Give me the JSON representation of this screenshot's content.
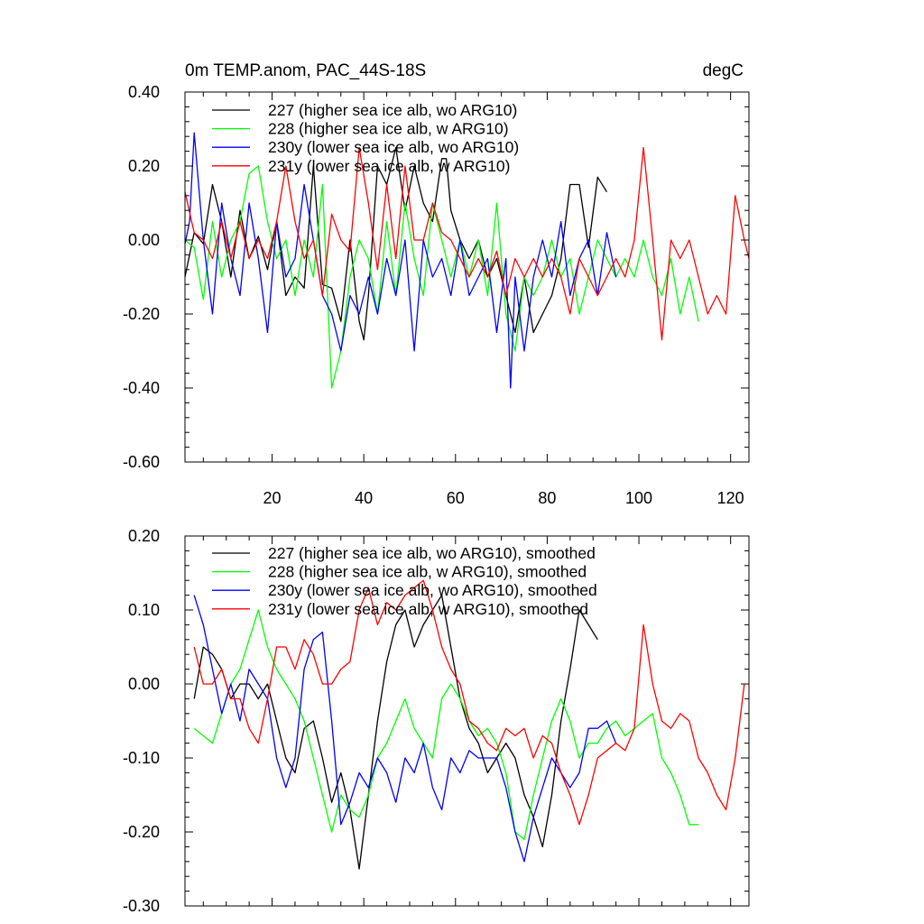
{
  "chart_data": [
    {
      "type": "line",
      "title_left": "0m TEMP.anom, PAC_44S-18S",
      "title_right": "degC",
      "xlabel": "",
      "ylabel": "",
      "xlim": [
        1,
        124
      ],
      "ylim": [
        -0.6,
        0.4
      ],
      "yticks": [
        -0.6,
        -0.4,
        -0.2,
        0.0,
        0.2,
        0.4
      ],
      "ytick_labels": [
        "-0.60",
        "-0.40",
        "-0.20",
        "0.00",
        "0.20",
        "0.40"
      ],
      "xticks": [
        20,
        40,
        60,
        80,
        100,
        120
      ],
      "xtick_labels": [
        "20",
        "40",
        "60",
        "80",
        "100",
        "120"
      ],
      "legend_position": "top-left",
      "series": [
        {
          "name": "227 (higher sea ice alb, wo ARG10)",
          "color": "#000000",
          "x": [
            1,
            3,
            5,
            7,
            9,
            11,
            13,
            15,
            17,
            19,
            21,
            23,
            25,
            27,
            29,
            31,
            33,
            35,
            37,
            39,
            40,
            41,
            43,
            45,
            47,
            49,
            51,
            53,
            55,
            57,
            58,
            59,
            61,
            63,
            65,
            67,
            69,
            71,
            73,
            75,
            77,
            79,
            81,
            83,
            85,
            87,
            89,
            91,
            93
          ],
          "y": [
            -0.1,
            0.02,
            -0.01,
            0.15,
            0.05,
            -0.1,
            0.08,
            -0.05,
            0.01,
            -0.08,
            0.05,
            -0.15,
            -0.1,
            -0.13,
            0.2,
            -0.12,
            -0.13,
            -0.22,
            0.0,
            -0.22,
            -0.27,
            -0.15,
            0.2,
            0.15,
            0.25,
            0.08,
            0.2,
            0.1,
            0.05,
            0.22,
            0.22,
            0.08,
            0.0,
            -0.05,
            0.0,
            -0.1,
            -0.05,
            -0.15,
            -0.25,
            -0.1,
            -0.25,
            -0.2,
            -0.15,
            -0.05,
            0.15,
            0.15,
            -0.02,
            0.17,
            0.13
          ]
        },
        {
          "name": "228 (higher sea ice alb, w ARG10)",
          "color": "#00ff00",
          "x": [
            1,
            3,
            5,
            7,
            9,
            11,
            13,
            15,
            17,
            19,
            21,
            23,
            25,
            27,
            29,
            31,
            33,
            35,
            37,
            39,
            41,
            43,
            45,
            47,
            49,
            51,
            53,
            55,
            57,
            59,
            61,
            63,
            65,
            67,
            69,
            71,
            73,
            75,
            77,
            79,
            81,
            83,
            85,
            87,
            89,
            91,
            93,
            95,
            97,
            99,
            101,
            103,
            105,
            107,
            109,
            111,
            113
          ],
          "y": [
            0.0,
            -0.02,
            -0.16,
            0.05,
            -0.1,
            0.0,
            0.05,
            0.18,
            0.2,
            0.05,
            -0.05,
            0.0,
            -0.15,
            0.0,
            -0.1,
            0.15,
            -0.4,
            -0.3,
            -0.1,
            0.0,
            -0.05,
            -0.2,
            0.05,
            -0.15,
            0.1,
            -0.05,
            -0.15,
            0.1,
            0.0,
            -0.1,
            0.0,
            -0.1,
            0.0,
            -0.15,
            0.1,
            -0.2,
            -0.3,
            -0.1,
            -0.15,
            -0.1,
            0.0,
            -0.1,
            -0.05,
            -0.2,
            -0.1,
            0.0,
            -0.05,
            -0.1,
            -0.05,
            -0.1,
            0.0,
            -0.1,
            -0.15,
            -0.05,
            -0.2,
            -0.1,
            -0.22
          ]
        },
        {
          "name": "230y (lower sea ice alb, wo ARG10)",
          "color": "#0000ff",
          "x": [
            1,
            2,
            3,
            5,
            7,
            9,
            11,
            13,
            15,
            17,
            19,
            21,
            23,
            25,
            27,
            29,
            31,
            33,
            35,
            37,
            39,
            41,
            43,
            45,
            47,
            49,
            51,
            53,
            55,
            57,
            59,
            61,
            63,
            65,
            67,
            69,
            71,
            72,
            73,
            75,
            77,
            79,
            81,
            83,
            85,
            87,
            89,
            91,
            93,
            95
          ],
          "y": [
            -0.01,
            0.05,
            0.29,
            0.0,
            -0.2,
            0.1,
            -0.05,
            -0.15,
            0.1,
            -0.05,
            -0.25,
            0.05,
            -0.1,
            -0.05,
            0.15,
            0.0,
            -0.15,
            -0.2,
            -0.3,
            -0.15,
            -0.2,
            -0.1,
            -0.2,
            -0.05,
            -0.15,
            0.0,
            -0.3,
            0.0,
            -0.1,
            -0.05,
            -0.15,
            0.0,
            -0.15,
            -0.1,
            -0.05,
            -0.25,
            -0.05,
            -0.4,
            -0.1,
            -0.3,
            -0.1,
            0.0,
            -0.1,
            0.05,
            -0.15,
            -0.05,
            0.0,
            -0.15,
            0.02,
            -0.1
          ]
        },
        {
          "name": "231y (lower sea ice alb, w ARG10)",
          "color": "#ff0000",
          "x": [
            1,
            3,
            5,
            7,
            9,
            11,
            13,
            15,
            17,
            19,
            21,
            23,
            25,
            27,
            29,
            31,
            33,
            35,
            37,
            39,
            41,
            43,
            45,
            47,
            49,
            51,
            53,
            55,
            57,
            59,
            61,
            63,
            65,
            67,
            69,
            71,
            73,
            75,
            77,
            79,
            81,
            83,
            85,
            87,
            89,
            91,
            93,
            95,
            97,
            99,
            101,
            103,
            105,
            107,
            109,
            111,
            113,
            115,
            117,
            119,
            121,
            123,
            124
          ],
          "y": [
            0.13,
            0.02,
            0.0,
            -0.05,
            0.05,
            -0.05,
            0.05,
            -0.05,
            0.0,
            -0.05,
            0.05,
            0.2,
            0.05,
            -0.05,
            0.0,
            -0.15,
            0.07,
            0.0,
            -0.03,
            0.25,
            0.1,
            -0.08,
            0.15,
            -0.05,
            0.2,
            0.0,
            0.0,
            0.1,
            0.02,
            0.0,
            -0.05,
            -0.1,
            -0.05,
            -0.1,
            -0.03,
            -0.15,
            -0.05,
            -0.1,
            -0.05,
            -0.1,
            -0.05,
            -0.1,
            -0.2,
            -0.05,
            -0.1,
            -0.15,
            -0.1,
            -0.05,
            -0.1,
            0.0,
            0.25,
            0.0,
            -0.27,
            0.0,
            -0.05,
            0.0,
            -0.1,
            -0.2,
            -0.15,
            -0.2,
            0.12,
            0.0,
            -0.05
          ]
        }
      ]
    },
    {
      "type": "line",
      "title_left": "",
      "title_right": "",
      "xlabel": "",
      "ylabel": "",
      "xlim": [
        1,
        124
      ],
      "ylim": [
        -0.3,
        0.2
      ],
      "yticks": [
        -0.3,
        -0.2,
        -0.1,
        0.0,
        0.1,
        0.2
      ],
      "ytick_labels": [
        "-0.30",
        "-0.20",
        "-0.10",
        "0.00",
        "0.10",
        "0.20"
      ],
      "xticks": [
        20,
        40,
        60,
        80,
        100,
        120
      ],
      "xtick_labels": [],
      "legend_position": "top-left",
      "series": [
        {
          "name": "227 (higher sea ice alb, wo ARG10), smoothed",
          "color": "#000000",
          "x": [
            3,
            5,
            7,
            9,
            11,
            13,
            15,
            17,
            19,
            21,
            23,
            25,
            27,
            29,
            31,
            33,
            35,
            37,
            39,
            41,
            43,
            45,
            47,
            49,
            51,
            53,
            55,
            57,
            59,
            61,
            63,
            65,
            67,
            69,
            71,
            73,
            75,
            77,
            79,
            81,
            83,
            85,
            87,
            89,
            91
          ],
          "y": [
            -0.02,
            0.05,
            0.04,
            0.02,
            -0.02,
            0.0,
            0.0,
            -0.02,
            0.0,
            -0.05,
            -0.1,
            -0.12,
            -0.06,
            -0.05,
            -0.1,
            -0.16,
            -0.12,
            -0.17,
            -0.25,
            -0.15,
            -0.05,
            0.03,
            0.08,
            0.1,
            0.05,
            0.08,
            0.1,
            0.12,
            0.05,
            -0.02,
            -0.06,
            -0.08,
            -0.12,
            -0.1,
            -0.08,
            -0.1,
            -0.15,
            -0.18,
            -0.22,
            -0.15,
            -0.05,
            0.02,
            0.1,
            0.08,
            0.06
          ]
        },
        {
          "name": "228 (higher sea ice alb, w ARG10), smoothed",
          "color": "#00ff00",
          "x": [
            3,
            5,
            7,
            9,
            11,
            13,
            15,
            17,
            19,
            21,
            23,
            25,
            27,
            29,
            31,
            33,
            35,
            37,
            39,
            41,
            43,
            45,
            47,
            49,
            51,
            53,
            55,
            57,
            59,
            61,
            63,
            65,
            67,
            69,
            71,
            73,
            75,
            77,
            79,
            81,
            83,
            85,
            87,
            89,
            91,
            93,
            95,
            97,
            99,
            101,
            103,
            105,
            107,
            109,
            111,
            113
          ],
          "y": [
            -0.06,
            -0.07,
            -0.08,
            -0.04,
            0.0,
            0.02,
            0.06,
            0.1,
            0.05,
            0.02,
            0.0,
            -0.02,
            -0.05,
            -0.1,
            -0.15,
            -0.2,
            -0.15,
            -0.17,
            -0.18,
            -0.15,
            -0.1,
            -0.08,
            -0.05,
            -0.02,
            -0.06,
            -0.08,
            -0.1,
            -0.02,
            0.0,
            -0.02,
            -0.05,
            -0.07,
            -0.06,
            -0.08,
            -0.12,
            -0.2,
            -0.21,
            -0.15,
            -0.1,
            -0.05,
            -0.02,
            -0.05,
            -0.1,
            -0.08,
            -0.08,
            -0.06,
            -0.05,
            -0.07,
            -0.06,
            -0.05,
            -0.04,
            -0.1,
            -0.12,
            -0.15,
            -0.19,
            -0.19
          ]
        },
        {
          "name": "230y (lower sea ice alb, wo ARG10), smoothed",
          "color": "#0000ff",
          "x": [
            3,
            5,
            7,
            9,
            11,
            13,
            15,
            17,
            19,
            21,
            23,
            25,
            27,
            29,
            31,
            33,
            35,
            37,
            39,
            41,
            43,
            45,
            47,
            49,
            51,
            53,
            55,
            57,
            59,
            61,
            63,
            65,
            67,
            69,
            71,
            73,
            75,
            77,
            79,
            81,
            83,
            85,
            87,
            89,
            91,
            93,
            95
          ],
          "y": [
            0.12,
            0.08,
            0.02,
            -0.04,
            0.0,
            -0.05,
            0.02,
            0.0,
            -0.02,
            -0.1,
            -0.14,
            -0.1,
            0.02,
            0.06,
            0.07,
            -0.05,
            -0.19,
            -0.16,
            -0.12,
            -0.14,
            -0.1,
            -0.12,
            -0.16,
            -0.1,
            -0.12,
            -0.08,
            -0.14,
            -0.17,
            -0.1,
            -0.12,
            -0.09,
            -0.1,
            -0.1,
            -0.1,
            -0.14,
            -0.2,
            -0.24,
            -0.18,
            -0.14,
            -0.1,
            -0.12,
            -0.14,
            -0.12,
            -0.06,
            -0.06,
            -0.05,
            -0.08
          ]
        },
        {
          "name": "231y (lower sea ice alb, w ARG10), smoothed",
          "color": "#ff0000",
          "x": [
            3,
            5,
            7,
            9,
            11,
            13,
            15,
            17,
            19,
            21,
            23,
            25,
            27,
            29,
            31,
            33,
            35,
            37,
            39,
            41,
            43,
            45,
            47,
            49,
            51,
            53,
            55,
            57,
            59,
            61,
            63,
            65,
            67,
            69,
            71,
            73,
            75,
            77,
            79,
            81,
            83,
            85,
            87,
            89,
            91,
            93,
            95,
            97,
            99,
            101,
            103,
            105,
            107,
            109,
            111,
            113,
            115,
            117,
            119,
            121,
            123
          ],
          "y": [
            0.05,
            0.0,
            0.0,
            0.02,
            -0.02,
            -0.02,
            -0.06,
            -0.08,
            -0.02,
            0.05,
            0.05,
            0.02,
            0.06,
            0.04,
            0.0,
            0.0,
            0.02,
            0.03,
            0.1,
            0.13,
            0.08,
            0.11,
            0.1,
            0.12,
            0.13,
            0.14,
            0.1,
            0.05,
            0.02,
            0.0,
            -0.05,
            -0.06,
            -0.08,
            -0.09,
            -0.06,
            -0.07,
            -0.06,
            -0.1,
            -0.07,
            -0.08,
            -0.12,
            -0.15,
            -0.19,
            -0.15,
            -0.1,
            -0.09,
            -0.08,
            -0.09,
            -0.06,
            0.08,
            0.0,
            -0.05,
            -0.06,
            -0.04,
            -0.05,
            -0.1,
            -0.12,
            -0.15,
            -0.17,
            -0.1,
            0.0
          ]
        }
      ]
    }
  ]
}
